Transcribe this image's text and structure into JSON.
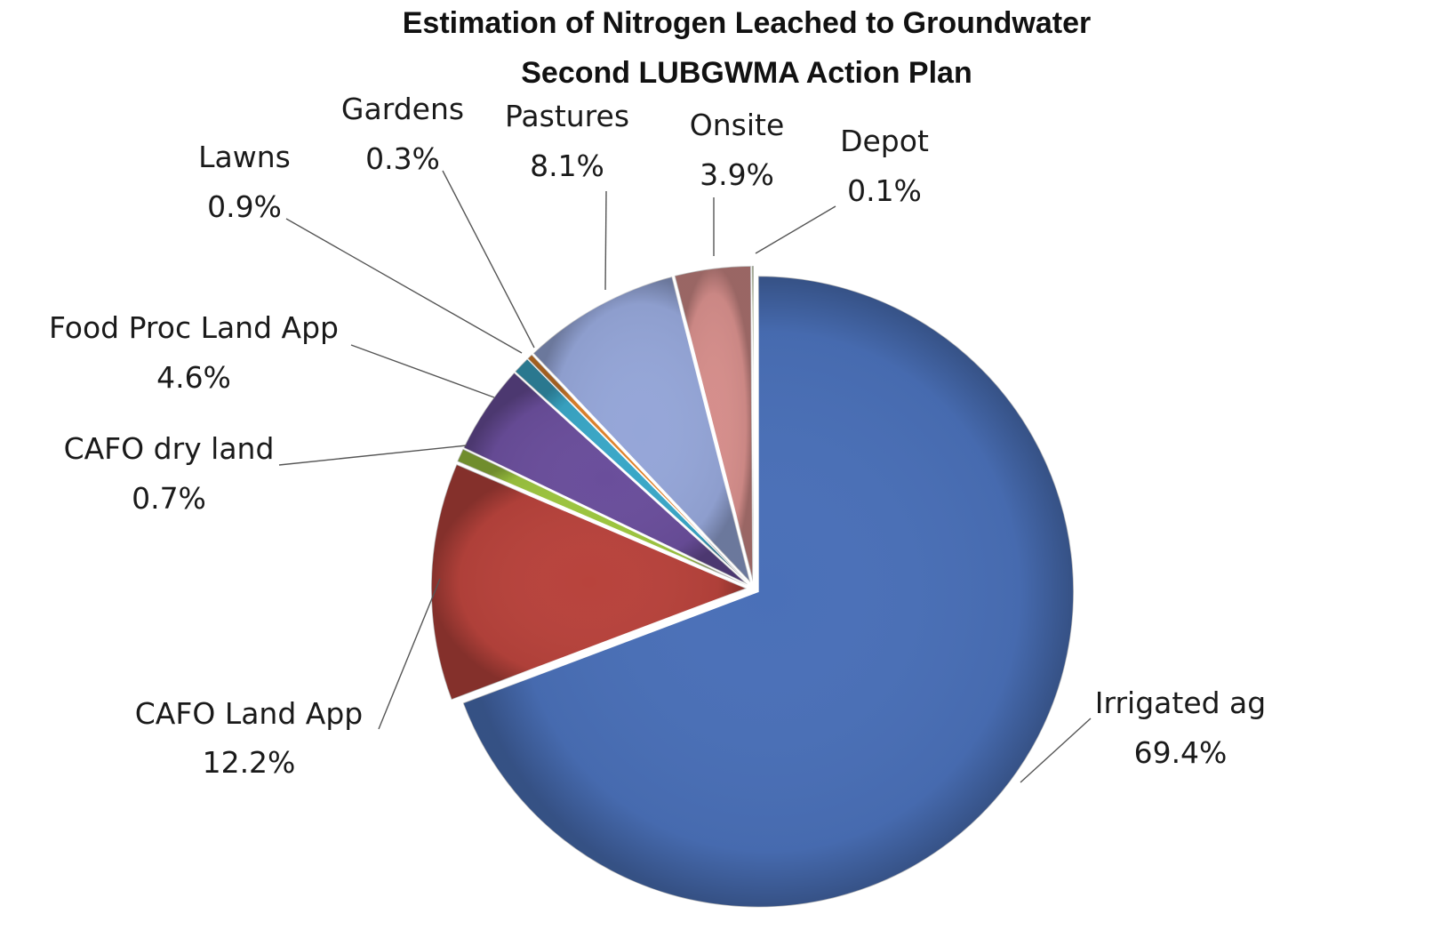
{
  "chart_data": {
    "type": "pie",
    "title": "Estimation of Nitrogen Leached to Groundwater",
    "subtitle": "Second LUBGWMA Action Plan",
    "legend": "none",
    "slices": [
      {
        "label": "Irrigated ag",
        "value": 69.4,
        "value_label": "69.4%",
        "color": "#4a70b8"
      },
      {
        "label": "CAFO Land App",
        "value": 12.2,
        "value_label": "12.2%",
        "color": "#b8433c"
      },
      {
        "label": "CAFO dry land",
        "value": 0.7,
        "value_label": "0.7%",
        "color": "#9cc43f"
      },
      {
        "label": "Food Proc Land App",
        "value": 4.6,
        "value_label": "4.6%",
        "color": "#6a4e9b"
      },
      {
        "label": "Lawns",
        "value": 0.9,
        "value_label": "0.9%",
        "color": "#3aa7c7"
      },
      {
        "label": "Gardens",
        "value": 0.3,
        "value_label": "0.3%",
        "color": "#e0832c"
      },
      {
        "label": "Pastures",
        "value": 8.1,
        "value_label": "8.1%",
        "color": "#95a6d8"
      },
      {
        "label": "Onsite",
        "value": 3.9,
        "value_label": "3.9%",
        "color": "#d58e8b"
      },
      {
        "label": "Depot",
        "value": 0.1,
        "value_label": "0.1%",
        "color": "#b5c98a"
      }
    ]
  }
}
